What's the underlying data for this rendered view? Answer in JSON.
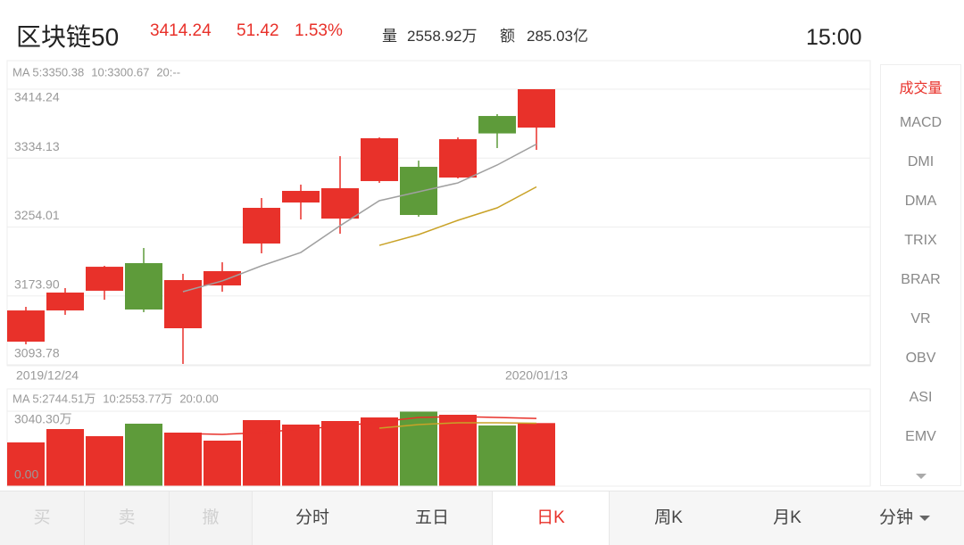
{
  "header": {
    "name": "区块链50",
    "price": "3414.24",
    "change": "51.42",
    "percent": "1.53%",
    "volume_label": "量",
    "volume": "2558.92万",
    "amount_label": "额",
    "amount": "285.03亿",
    "time": "15:00"
  },
  "chart_data": [
    {
      "type": "candlestick",
      "categories": [
        "2019/12/24",
        null,
        null,
        null,
        null,
        null,
        null,
        null,
        null,
        null,
        null,
        null,
        null,
        "2020/01/13"
      ],
      "open": [
        3120.7,
        3157.0,
        3179.9,
        3212.0,
        3136.3,
        3186.1,
        3234.8,
        3282.5,
        3263.8,
        3307.4,
        3324.0,
        3311.5,
        3383.1,
        3369.6
      ],
      "close": [
        3157.0,
        3177.8,
        3207.8,
        3158.1,
        3192.3,
        3202.7,
        3276.3,
        3296.0,
        3299.1,
        3357.2,
        3268.0,
        3356.1,
        3362.82,
        3414.24
      ],
      "high": [
        3161.2,
        3183.0,
        3208.9,
        3229.6,
        3199.6,
        3213.0,
        3287.7,
        3303.3,
        3336.4,
        3358.2,
        3331.2,
        3358.2,
        3385.2,
        3414.24
      ],
      "low": [
        3117.6,
        3151.9,
        3169.5,
        3155.0,
        3094.8,
        3178.8,
        3223.4,
        3262.8,
        3246.2,
        3305.3,
        3266.0,
        3310.5,
        3345.8,
        3343.7
      ],
      "up_color": "#e8312a",
      "down_color": "#5e9b3a",
      "series": [
        {
          "name": "MA 5:3350.38",
          "color": "#a0a0a0",
          "values": [
            null,
            null,
            null,
            null,
            3178.8,
            3191.3,
            3208.9,
            3224.4,
            3255.5,
            3284.6,
            3295.0,
            3305.3,
            3326.1,
            3350.38
          ]
        },
        {
          "name": "10:3300.67",
          "color": "#c9a227",
          "values": [
            null,
            null,
            null,
            null,
            null,
            null,
            null,
            null,
            null,
            3232.7,
            3245.2,
            3261.8,
            3276.3,
            3300.67
          ]
        },
        {
          "name": "20:--",
          "color": "#b8b8b8",
          "values": [
            null,
            null,
            null,
            null,
            null,
            null,
            null,
            null,
            null,
            null,
            null,
            null,
            null,
            null
          ]
        }
      ],
      "ylim": [
        3093.78,
        3414.24
      ],
      "yticks": [
        3093.78,
        {
          "value": 3173.9,
          "label": "3173.90"
        },
        3254.01,
        3334.13,
        3414.24
      ],
      "grid": true
    },
    {
      "type": "bar",
      "values": [
        1773.5,
        2316.4,
        2026.9,
        2533.6,
        2171.6,
        1845.9,
        2678.4,
        2497.4,
        2642.2,
        2787.0,
        3040.3,
        2895.5,
        2461.2,
        2558.92
      ],
      "colors": [
        "#e8312a",
        "#e8312a",
        "#e8312a",
        "#5e9b3a",
        "#e8312a",
        "#e8312a",
        "#e8312a",
        "#e8312a",
        "#e8312a",
        "#e8312a",
        "#5e9b3a",
        "#e8312a",
        "#5e9b3a",
        "#e8312a"
      ],
      "series": [
        {
          "name": "MA 5:2744.51万",
          "color": "#e8312a",
          "values": [
            null,
            null,
            null,
            null,
            2135.5,
            2099.3,
            2171.6,
            2316.4,
            2425.0,
            2606.0,
            2787.0,
            2823.0,
            2787.0,
            2744.51
          ]
        },
        {
          "name": "10:2553.77万",
          "color": "#c9a227",
          "values": [
            null,
            null,
            null,
            null,
            null,
            null,
            null,
            null,
            null,
            2352.6,
            2497.4,
            2569.8,
            2569.8,
            2553.77
          ]
        },
        {
          "name": "20:0.00",
          "color": "#7f9fc8",
          "values": [
            null,
            null,
            null,
            null,
            null,
            null,
            null,
            null,
            null,
            null,
            null,
            null,
            null,
            null
          ]
        }
      ],
      "ylim": [
        0,
        3040.3
      ],
      "yticks": [
        {
          "value": 0,
          "label": "0.00"
        },
        {
          "value": 3040.3,
          "label": "3040.30万"
        }
      ]
    }
  ],
  "indicators": [
    "成交量",
    "MACD",
    "DMI",
    "DMA",
    "TRIX",
    "BRAR",
    "VR",
    "OBV",
    "ASI",
    "EMV"
  ],
  "tabs": [
    "买",
    "卖",
    "撤",
    "分时",
    "五日",
    "日K",
    "周K",
    "月K",
    "分钟"
  ]
}
